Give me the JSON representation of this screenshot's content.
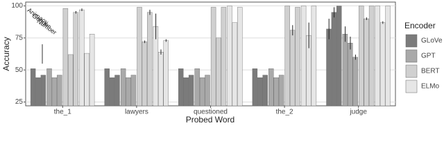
{
  "chart_data": {
    "type": "grouped-bar",
    "x_label": "Probed Word",
    "y_label": "Accuracy",
    "categories": [
      "the_1",
      "lawyers",
      "questioned",
      "the_2",
      "judge"
    ],
    "properties": [
      "Animacy",
      "Gender",
      "Number"
    ],
    "legend_title": "Encoder",
    "series": [
      {
        "name": "GLoVe",
        "color": "#7b7b7b",
        "values": [
          [
            51,
            44,
            46
          ],
          [
            51,
            44,
            46
          ],
          [
            51,
            44,
            46
          ],
          [
            51,
            44,
            46
          ],
          [
            82,
            95,
            100
          ]
        ],
        "errors": [
          [
            0,
            0,
            0
          ],
          [
            0,
            0,
            0
          ],
          [
            0,
            0,
            0
          ],
          [
            0,
            0,
            0
          ],
          [
            8,
            4,
            0
          ]
        ]
      },
      {
        "name": "GPT",
        "color": "#a9a9a9",
        "values": [
          [
            51,
            44,
            46
          ],
          [
            51,
            44,
            46
          ],
          [
            51,
            44,
            46
          ],
          [
            51,
            44,
            46
          ],
          [
            78,
            71,
            60
          ]
        ],
        "errors": [
          [
            0,
            0,
            0
          ],
          [
            0,
            0,
            0
          ],
          [
            0,
            0,
            0
          ],
          [
            0,
            0,
            0
          ],
          [
            6,
            5,
            2
          ]
        ]
      },
      {
        "name": "BERT",
        "color": "#d0d0d0",
        "values": [
          [
            98,
            62,
            95
          ],
          [
            99,
            72,
            95
          ],
          [
            99,
            75,
            99
          ],
          [
            100,
            81,
            99
          ],
          [
            100,
            90,
            100
          ]
        ],
        "errors": [
          [
            0,
            0,
            1
          ],
          [
            0,
            1,
            2
          ],
          [
            0,
            0,
            0
          ],
          [
            0,
            4,
            0
          ],
          [
            0,
            1,
            0
          ]
        ]
      },
      {
        "name": "ELMo",
        "color": "#e6e6e6",
        "values": [
          [
            97,
            63,
            78
          ],
          [
            84,
            64,
            73
          ],
          [
            100,
            87,
            99
          ],
          [
            100,
            77,
            100
          ],
          [
            100,
            87,
            100
          ]
        ],
        "errors": [
          [
            1,
            0,
            0
          ],
          [
            10,
            2,
            1
          ],
          [
            0,
            0,
            0
          ],
          [
            0,
            10,
            0
          ],
          [
            0,
            1,
            0
          ]
        ]
      }
    ],
    "ylim": [
      22,
      103
    ],
    "yticks": [
      25,
      50,
      75,
      100
    ],
    "grid": true
  }
}
